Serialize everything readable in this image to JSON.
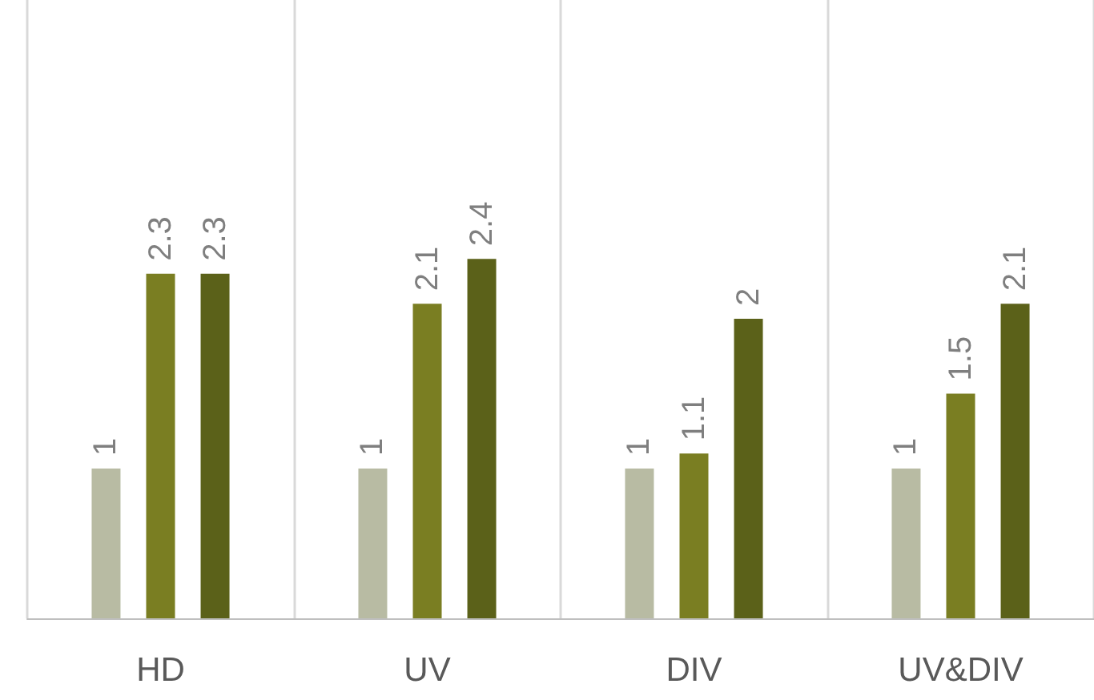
{
  "chart_data": {
    "type": "bar",
    "categories": [
      "HD",
      "UV",
      "DIV",
      "UV&DIV"
    ],
    "series": [
      {
        "color": "#b8bba3",
        "values": [
          1,
          1,
          1,
          1
        ]
      },
      {
        "color": "#7a7e22",
        "values": [
          2.3,
          2.1,
          1.1,
          1.5
        ]
      },
      {
        "color": "#5b6119",
        "values": [
          2.3,
          2.4,
          2,
          2.1
        ]
      }
    ],
    "data_labels": true,
    "grid": "x"
  }
}
